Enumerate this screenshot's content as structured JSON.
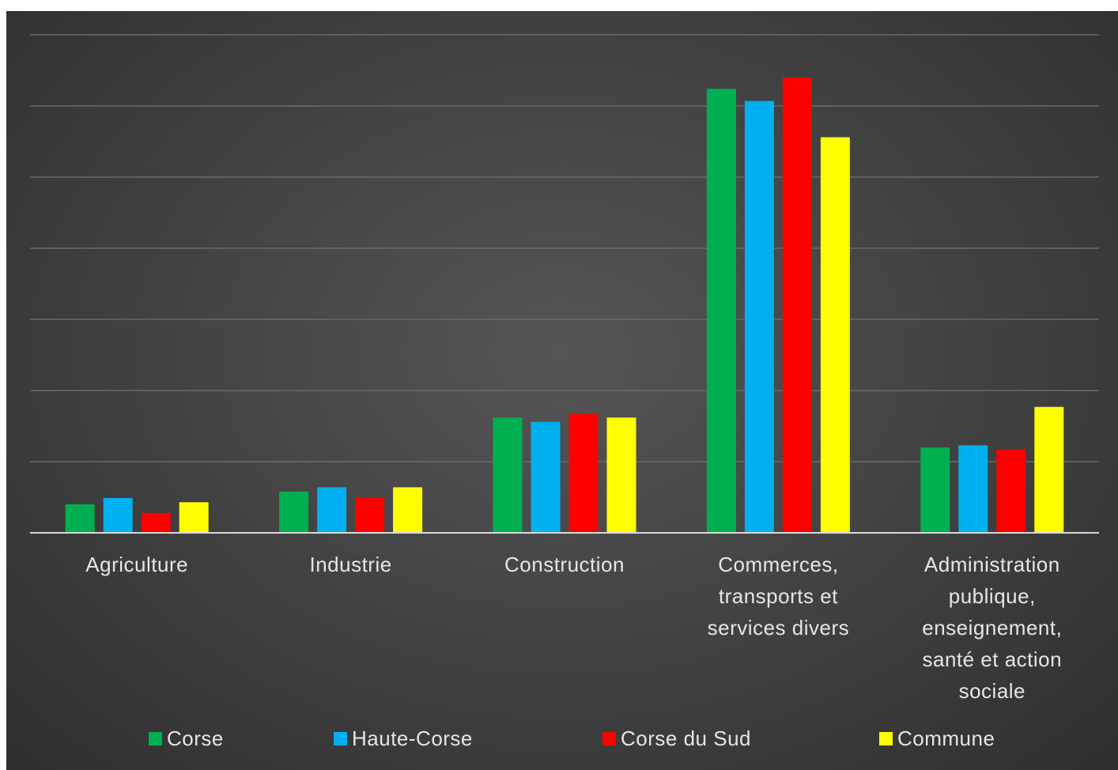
{
  "chart_data": {
    "type": "bar",
    "title": "",
    "xlabel": "",
    "ylabel": "",
    "categories": [
      "Agriculture",
      "Industrie",
      "Construction",
      "Commerces, transports et services divers",
      "Administration publique, enseignement, santé et action sociale"
    ],
    "category_lines": [
      [
        "Agriculture"
      ],
      [
        "Industrie"
      ],
      [
        "Construction"
      ],
      [
        "Commerces,",
        "transports et",
        "services divers"
      ],
      [
        "Administration",
        "publique,",
        "enseignement,",
        "santé et action",
        "sociale"
      ]
    ],
    "series": [
      {
        "name": "Corse",
        "color": "#00b050",
        "values": [
          4.0,
          5.8,
          16.2,
          62.4,
          12.0
        ]
      },
      {
        "name": "Haute-Corse",
        "color": "#00b0f0",
        "values": [
          4.9,
          6.4,
          15.6,
          60.7,
          12.3
        ]
      },
      {
        "name": "Corse du Sud",
        "color": "#ff0000",
        "values": [
          2.8,
          4.9,
          16.7,
          64.0,
          11.7
        ]
      },
      {
        "name": "Commune",
        "color": "#ffff00",
        "values": [
          4.3,
          6.4,
          16.2,
          55.6,
          17.7
        ]
      }
    ],
    "ylim": [
      0,
      70
    ],
    "grid_step": 10,
    "grid": true,
    "legend_position": "bottom"
  }
}
